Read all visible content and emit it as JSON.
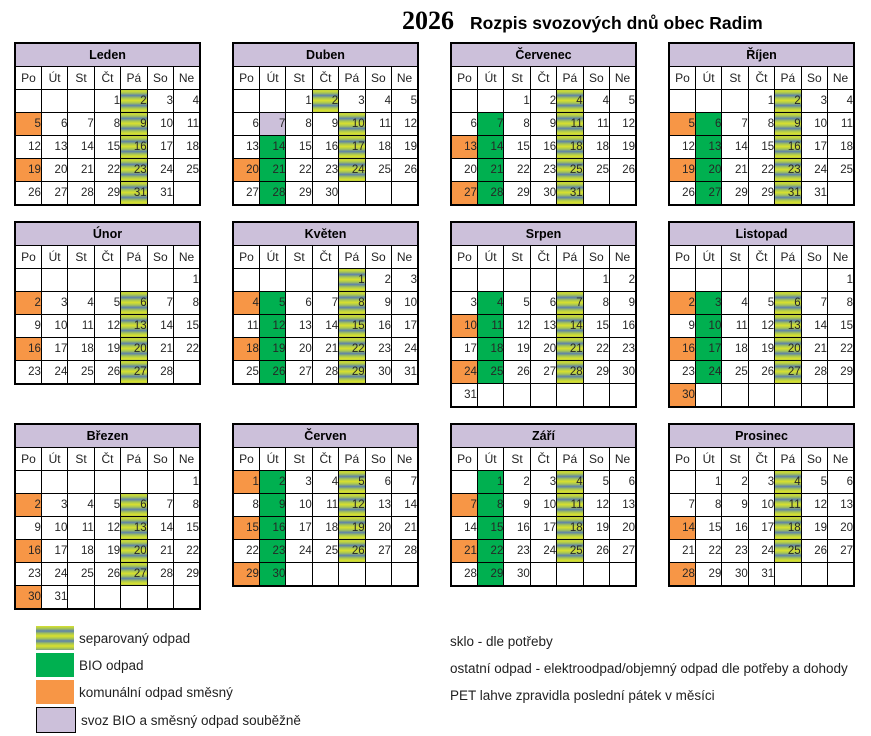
{
  "title": {
    "year": "2026",
    "text": "Rozpis svozových dnů obec Radim"
  },
  "colors": {
    "bio_green": "#00b050",
    "komunal_orange": "#f79646",
    "soubezne_lavender": "#ccc0da",
    "separovany_yellow": "#d9e12e",
    "separovany_blue": "#5d82aa"
  },
  "calendar": {
    "day_headers": [
      "Po",
      "Út",
      "St",
      "Čt",
      "Pá",
      "So",
      "Ne"
    ],
    "months": [
      {
        "name": "Leden",
        "weeks": [
          [
            "",
            "",
            "",
            "1",
            "2:s",
            "3",
            "4"
          ],
          [
            "5:o",
            "6",
            "7",
            "8",
            "9:s",
            "10",
            "11"
          ],
          [
            "12",
            "13",
            "14",
            "15",
            "16:s",
            "17",
            "18"
          ],
          [
            "19:o",
            "20",
            "21",
            "22",
            "23:s",
            "24",
            "25"
          ],
          [
            "26",
            "27",
            "28",
            "29",
            "31:s",
            "31",
            ""
          ]
        ]
      },
      {
        "name": "Duben",
        "weeks": [
          [
            "",
            "",
            "1",
            "2:s",
            "3",
            "4",
            "5"
          ],
          [
            "6",
            "7:p",
            "8",
            "9",
            "10:s",
            "11",
            "12"
          ],
          [
            "13",
            "14:g",
            "15",
            "16",
            "17:s",
            "18",
            "19"
          ],
          [
            "20:o",
            "21:g",
            "22",
            "23",
            "24:s",
            "25",
            "26"
          ],
          [
            "27",
            "28:g",
            "29",
            "30",
            "",
            "",
            ""
          ]
        ]
      },
      {
        "name": "Červenec",
        "weeks": [
          [
            "",
            "",
            "1",
            "2",
            "4:s",
            "4",
            "5"
          ],
          [
            "6",
            "7:g",
            "8",
            "9",
            "11:s",
            "11",
            "12"
          ],
          [
            "13:o",
            "14:g",
            "15",
            "16",
            "18:s",
            "18",
            "19"
          ],
          [
            "20",
            "21:g",
            "22",
            "23",
            "25:s",
            "25",
            "26"
          ],
          [
            "27:o",
            "28:g",
            "29",
            "30",
            "31:s",
            "",
            ""
          ]
        ]
      },
      {
        "name": "Říjen",
        "weeks": [
          [
            "",
            "",
            "",
            "1",
            "2:s",
            "3",
            "4"
          ],
          [
            "5:o",
            "6:g",
            "7",
            "8",
            "9:s",
            "10",
            "11"
          ],
          [
            "12",
            "13:g",
            "14",
            "15",
            "16:s",
            "17",
            "18"
          ],
          [
            "19:o",
            "20:g",
            "21",
            "22",
            "23:s",
            "24",
            "25"
          ],
          [
            "26",
            "27:g",
            "29",
            "29",
            "31:s",
            "31",
            ""
          ]
        ]
      },
      {
        "name": "Únor",
        "weeks": [
          [
            "",
            "",
            "",
            "",
            "",
            "",
            "1"
          ],
          [
            "2:o",
            "3",
            "4",
            "5",
            "6:s",
            "7",
            "8"
          ],
          [
            "9",
            "10",
            "11",
            "12",
            "13:s",
            "14",
            "15"
          ],
          [
            "16:o",
            "17",
            "18",
            "19",
            "20:s",
            "21",
            "22"
          ],
          [
            "23",
            "24",
            "25",
            "26",
            "27:s",
            "28",
            ""
          ]
        ]
      },
      {
        "name": "Květen",
        "weeks": [
          [
            "",
            "",
            "",
            "",
            "1:s",
            "2",
            "3"
          ],
          [
            "4:o",
            "5:g",
            "6",
            "7",
            "8:s",
            "9",
            "10"
          ],
          [
            "11",
            "12:g",
            "13",
            "14",
            "15:s",
            "16",
            "17"
          ],
          [
            "18:o",
            "19:g",
            "20",
            "21",
            "22:s",
            "23",
            "24"
          ],
          [
            "25",
            "26:g",
            "27",
            "28",
            "29:s",
            "30",
            "31"
          ]
        ]
      },
      {
        "name": "Srpen",
        "weeks": [
          [
            "",
            "",
            "",
            "",
            "",
            "1",
            "2"
          ],
          [
            "3",
            "4:g",
            "5",
            "6",
            "7:s",
            "8",
            "9"
          ],
          [
            "10:o",
            "11:g",
            "12",
            "13",
            "14:s",
            "15",
            "16"
          ],
          [
            "17",
            "18:g",
            "19",
            "20",
            "21:s",
            "22",
            "23"
          ],
          [
            "24:o",
            "25:g",
            "26",
            "27",
            "28:s",
            "29",
            "30"
          ],
          [
            "31",
            "",
            "",
            "",
            "",
            "",
            ""
          ]
        ]
      },
      {
        "name": "Listopad",
        "weeks": [
          [
            "",
            "",
            "",
            "",
            "",
            "",
            "1"
          ],
          [
            "2:o",
            "3:g",
            "4",
            "5",
            "6:s",
            "7",
            "8"
          ],
          [
            "9",
            "10:g",
            "11",
            "12",
            "13:s",
            "14",
            "15"
          ],
          [
            "16:o",
            "17:g",
            "18",
            "19",
            "20:s",
            "21",
            "22"
          ],
          [
            "23",
            "24:g",
            "25",
            "26",
            "27:s",
            "28",
            "29"
          ],
          [
            "30:o",
            "",
            "",
            "",
            "",
            "",
            ""
          ]
        ]
      },
      {
        "name": "Březen",
        "weeks": [
          [
            "",
            "",
            "",
            "",
            "",
            "",
            "1"
          ],
          [
            "2:o",
            "3",
            "4",
            "5",
            "6:s",
            "7",
            "8"
          ],
          [
            "9",
            "10",
            "11",
            "12",
            "13:s",
            "14",
            "15"
          ],
          [
            "16:o",
            "17",
            "18",
            "19",
            "20:s",
            "21",
            "22"
          ],
          [
            "23",
            "24",
            "25",
            "26",
            "27:s",
            "28",
            "29"
          ],
          [
            "30:o",
            "31",
            "",
            "",
            "",
            "",
            ""
          ]
        ]
      },
      {
        "name": "Červen",
        "weeks": [
          [
            "1:o",
            "2:g",
            "3",
            "4",
            "5:s",
            "6",
            "7"
          ],
          [
            "8",
            "9:g",
            "10",
            "11",
            "12:s",
            "13",
            "14"
          ],
          [
            "15:o",
            "16:g",
            "17",
            "18",
            "19:s",
            "20",
            "21"
          ],
          [
            "22",
            "23:g",
            "24",
            "25",
            "26:s",
            "27",
            "28"
          ],
          [
            "29:o",
            "30:g",
            "",
            "",
            "",
            "",
            ""
          ]
        ]
      },
      {
        "name": "Září",
        "weeks": [
          [
            "",
            "1:g",
            "2",
            "3",
            "4:s",
            "5",
            "6"
          ],
          [
            "7:o",
            "8:g",
            "9",
            "10",
            "11:s",
            "12",
            "13"
          ],
          [
            "14",
            "15:g",
            "16",
            "17",
            "18:s",
            "19",
            "20"
          ],
          [
            "21:o",
            "22:g",
            "23",
            "24",
            "25:s",
            "26",
            "27"
          ],
          [
            "28",
            "29:g",
            "30",
            "",
            "",
            "",
            ""
          ]
        ]
      },
      {
        "name": "Prosinec",
        "weeks": [
          [
            "",
            "1",
            "2",
            "3",
            "4:s",
            "5",
            "6"
          ],
          [
            "7",
            "8",
            "9",
            "10",
            "11:s",
            "12",
            "13"
          ],
          [
            "14:o",
            "15",
            "16",
            "17",
            "18:s",
            "19",
            "20"
          ],
          [
            "21",
            "22",
            "23",
            "24",
            "25:s",
            "26",
            "27"
          ],
          [
            "28:o",
            "29",
            "30",
            "31",
            "",
            "",
            ""
          ]
        ]
      }
    ]
  },
  "legend": {
    "items": [
      {
        "type": "sep",
        "label": "separovaný odpad"
      },
      {
        "type": "bio",
        "label": "BIO odpad"
      },
      {
        "type": "kom",
        "label": "komunální odpad směsný"
      },
      {
        "type": "sou",
        "label": "svoz BIO a směsný odpad souběžně"
      }
    ]
  },
  "notes": [
    "sklo - dle potřeby",
    "ostatní odpad - elektroodpad/objemný odpad dle potřeby a dohody",
    "PET lahve zpravidla poslední pátek v měsíci"
  ]
}
